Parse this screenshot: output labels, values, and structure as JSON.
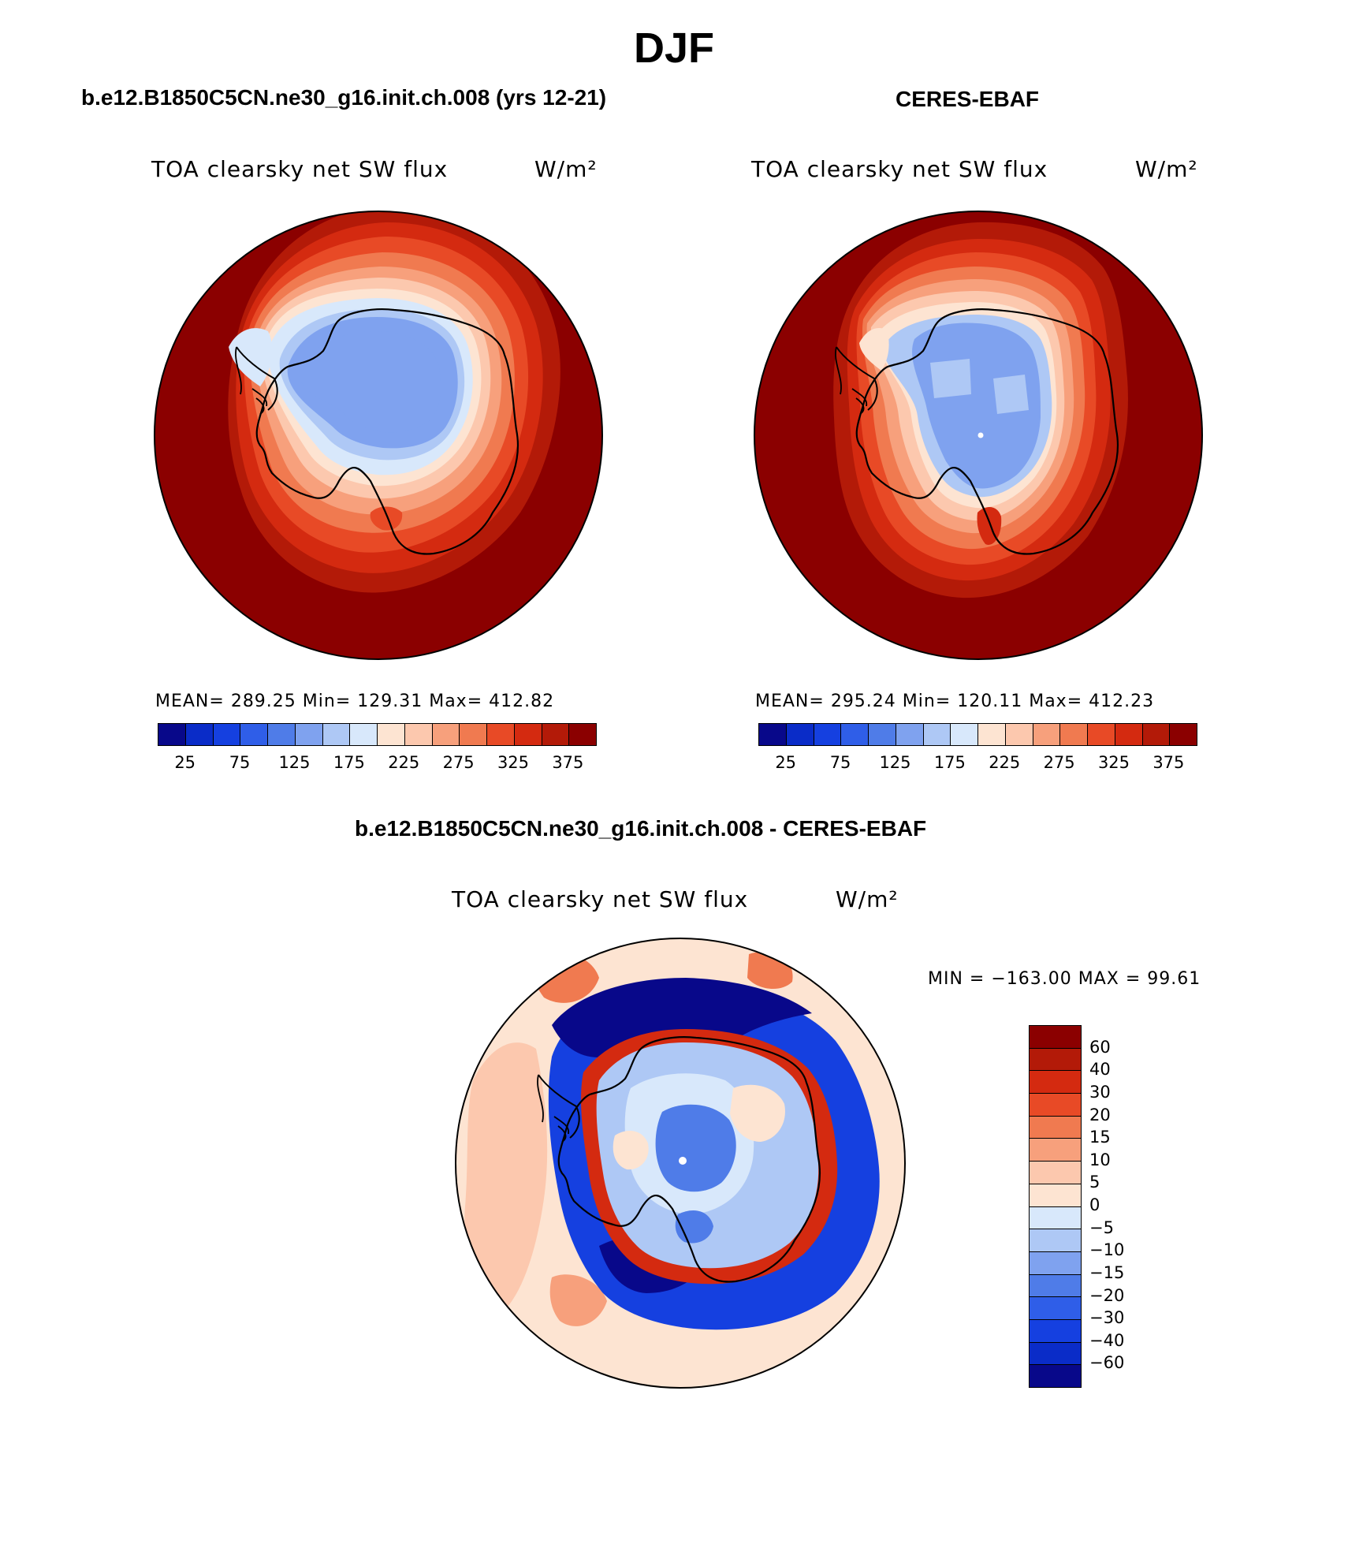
{
  "page_title": "DJF",
  "panels": [
    {
      "title": "b.e12.B1850C5CN.ne30_g16.init.ch.008 (yrs 12-21)",
      "variable": "TOA clearsky net SW flux",
      "units": "W/m²",
      "stats": "MEAN= 289.25   Min= 129.31   Max= 412.82"
    },
    {
      "title": "CERES-EBAF",
      "variable": "TOA clearsky net SW flux",
      "units": "W/m²",
      "stats": "MEAN= 295.24   Min= 120.11   Max= 412.23"
    },
    {
      "title": "b.e12.B1850C5CN.ne30_g16.init.ch.008 - CERES-EBAF",
      "variable": "TOA clearsky net SW flux",
      "units": "W/m²",
      "stats": "MIN = −163.00 MAX =   99.61"
    }
  ],
  "colorbar_abs": {
    "tick_labels": [
      "25",
      "75",
      "125",
      "175",
      "225",
      "275",
      "325",
      "375"
    ],
    "colors": [
      "#08088a",
      "#0a2cc8",
      "#1540e0",
      "#2f5ee8",
      "#4f7ce8",
      "#7fa2ef",
      "#aec8f5",
      "#d8e8fb",
      "#fde4d2",
      "#fcc8ae",
      "#f7a07c",
      "#f07a50",
      "#e84a26",
      "#d42a10",
      "#b31a08",
      "#8b0000"
    ]
  },
  "colorbar_diff": {
    "tick_labels": [
      "60",
      "40",
      "30",
      "20",
      "15",
      "10",
      "5",
      "0",
      "−5",
      "−10",
      "−15",
      "−20",
      "−30",
      "−40",
      "−60"
    ],
    "colors": [
      "#8b0000",
      "#b31a08",
      "#d42a10",
      "#e84a26",
      "#f07a50",
      "#f7a07c",
      "#fcc8ae",
      "#fde4d2",
      "#d8e8fb",
      "#aec8f5",
      "#7fa2ef",
      "#4f7ce8",
      "#2f5ee8",
      "#1540e0",
      "#0a2cc8",
      "#08088a"
    ]
  }
}
